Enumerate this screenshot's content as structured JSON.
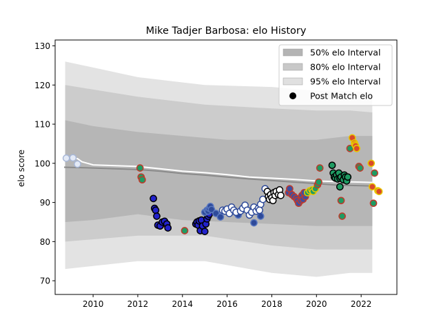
{
  "chart_data": {
    "type": "scatter",
    "title": "Mike Tadjer Barbosa: elo History",
    "xlabel": "",
    "ylabel": "elo score",
    "xlim": [
      2008.3,
      2023.6
    ],
    "ylim": [
      66.5,
      131.5
    ],
    "x_ticks": [
      2010,
      2012,
      2014,
      2016,
      2018,
      2020,
      2022
    ],
    "y_ticks": [
      70,
      80,
      90,
      100,
      110,
      120,
      130
    ],
    "grid": false,
    "legend_position": "top-right",
    "legend": [
      {
        "label": "50% elo Interval",
        "color": "#b4b4b4"
      },
      {
        "label": "80% elo Interval",
        "color": "#c8c8c8"
      },
      {
        "label": "95% elo Interval",
        "color": "#e0e0e0"
      },
      {
        "label": "Post Match elo",
        "color": "#000000"
      }
    ],
    "colors": {
      "band95": "#e3e3e3",
      "band80": "#cccccc",
      "band50": "#b6b6b6",
      "mean_line": "#ffffff",
      "fit_line": "#8a8a8a"
    },
    "band95": {
      "x": [
        2008.75,
        2012,
        2015,
        2018,
        2020,
        2021.5,
        2022.5
      ],
      "upper": [
        126,
        122,
        120,
        119.5,
        118.5,
        118.5,
        118
      ],
      "lower": [
        73,
        75,
        75,
        72,
        71,
        72,
        72
      ]
    },
    "band80": {
      "x": [
        2008.75,
        2012,
        2015,
        2018,
        2020,
        2021.5,
        2022.5
      ],
      "upper": [
        120,
        117,
        115,
        114,
        113.5,
        113.5,
        113
      ],
      "lower": [
        80,
        81.5,
        81.5,
        79,
        78,
        78,
        78
      ]
    },
    "band50": {
      "x": [
        2008.75,
        2010,
        2012,
        2014,
        2016,
        2018,
        2020,
        2021.5,
        2022.5
      ],
      "upper": [
        111,
        109.5,
        108,
        107,
        106,
        106,
        106,
        107,
        107
      ],
      "lower": [
        85,
        85.5,
        87,
        85.5,
        85,
        84.5,
        84,
        84,
        84
      ]
    },
    "mean_line": {
      "x": [
        2008.7,
        2009.0,
        2009.3,
        2009.5,
        2010,
        2011,
        2012,
        2013,
        2014,
        2015,
        2016,
        2017,
        2018,
        2019,
        2020,
        2021,
        2022,
        2022.5
      ],
      "y": [
        101.3,
        101.3,
        101.2,
        100.4,
        99.6,
        99.4,
        99.2,
        98.6,
        98.0,
        97.6,
        97.1,
        96.5,
        96.2,
        95.9,
        95.5,
        95.3,
        95.2,
        95.1
      ]
    },
    "fit_line": {
      "x": [
        2008.7,
        2010,
        2012,
        2013,
        2014,
        2015,
        2016,
        2017,
        2018,
        2019,
        2020,
        2021,
        2022,
        2022.5
      ],
      "y": [
        99.0,
        98.8,
        98.4,
        98.0,
        97.4,
        97.0,
        96.5,
        96.0,
        95.6,
        95.2,
        94.8,
        94.4,
        94.3,
        94.2
      ]
    },
    "series": [
      {
        "fill": "#e4eaf6",
        "stroke": "#a8b8d8",
        "points": [
          [
            2008.8,
            101.3
          ],
          [
            2009.1,
            101.4
          ],
          [
            2009.3,
            99.8
          ]
        ]
      },
      {
        "fill": "#1f9b63",
        "stroke": "#c0392b",
        "points": [
          [
            2012.1,
            98.8
          ],
          [
            2012.15,
            96.5
          ],
          [
            2012.2,
            95.8
          ],
          [
            2013.1,
            84.5
          ],
          [
            2014.1,
            82.8
          ]
        ]
      },
      {
        "fill": "#2222cc",
        "stroke": "#000000",
        "points": [
          [
            2012.7,
            91.0
          ],
          [
            2012.75,
            88.5
          ],
          [
            2012.8,
            88.0
          ],
          [
            2012.85,
            86.5
          ],
          [
            2012.9,
            84.2
          ],
          [
            2013.0,
            84.0
          ],
          [
            2013.1,
            85.0
          ],
          [
            2013.2,
            85.2
          ],
          [
            2013.3,
            84.5
          ],
          [
            2013.35,
            83.5
          ],
          [
            2014.6,
            84.5
          ],
          [
            2014.65,
            85.0
          ],
          [
            2014.7,
            84.2
          ],
          [
            2014.75,
            85.3
          ],
          [
            2014.8,
            82.8
          ],
          [
            2014.85,
            85.5
          ],
          [
            2014.9,
            84.0
          ],
          [
            2015.0,
            82.6
          ],
          [
            2015.05,
            84.5
          ],
          [
            2015.1,
            85.8
          ],
          [
            2015.15,
            86.5
          ],
          [
            2015.2,
            87.0
          ]
        ]
      },
      {
        "fill": "#2e4a9a",
        "stroke": "#5a78c0",
        "points": [
          [
            2015.0,
            87.5
          ],
          [
            2015.1,
            88.0
          ],
          [
            2015.15,
            87.8
          ],
          [
            2015.2,
            88.5
          ],
          [
            2015.25,
            89.0
          ],
          [
            2015.3,
            88.2
          ],
          [
            2015.5,
            87.2
          ],
          [
            2015.7,
            86.3
          ],
          [
            2016.5,
            86.8
          ],
          [
            2017.2,
            84.8
          ],
          [
            2017.5,
            86.5
          ]
        ]
      },
      {
        "fill": "#ffffff",
        "stroke": "#2e4a9a",
        "points": [
          [
            2015.8,
            88.0
          ],
          [
            2015.9,
            87.8
          ],
          [
            2016.0,
            88.3
          ],
          [
            2016.1,
            87.2
          ],
          [
            2016.2,
            88.8
          ],
          [
            2016.3,
            88.0
          ],
          [
            2016.4,
            87.5
          ],
          [
            2016.6,
            87.8
          ],
          [
            2016.7,
            88.5
          ],
          [
            2016.8,
            89.3
          ],
          [
            2016.9,
            88.0
          ],
          [
            2017.0,
            86.8
          ],
          [
            2017.1,
            87.5
          ],
          [
            2017.2,
            88.8
          ],
          [
            2017.3,
            87.8
          ],
          [
            2017.4,
            88.5
          ],
          [
            2017.5,
            89.5
          ],
          [
            2017.6,
            90.8
          ],
          [
            2017.7,
            93.5
          ],
          [
            2017.45,
            88.0
          ]
        ]
      },
      {
        "fill": "#ffffff",
        "stroke": "#000000",
        "points": [
          [
            2017.8,
            92.8
          ],
          [
            2017.85,
            91.5
          ],
          [
            2017.9,
            90.8
          ],
          [
            2017.95,
            92.0
          ],
          [
            2018.0,
            91.2
          ],
          [
            2018.05,
            90.5
          ],
          [
            2018.1,
            92.5
          ],
          [
            2018.15,
            91.8
          ],
          [
            2018.2,
            92.8
          ],
          [
            2018.3,
            92.0
          ],
          [
            2018.35,
            93.2
          ],
          [
            2018.4,
            91.8
          ]
        ]
      },
      {
        "fill": "#3d4fa0",
        "stroke": "#c0392b",
        "points": [
          [
            2018.75,
            92.5
          ],
          [
            2018.8,
            93.5
          ],
          [
            2018.9,
            92.0
          ],
          [
            2019.0,
            91.5
          ],
          [
            2019.1,
            91.0
          ],
          [
            2019.15,
            90.5
          ],
          [
            2019.2,
            89.8
          ],
          [
            2019.3,
            90.5
          ],
          [
            2019.35,
            91.8
          ],
          [
            2019.4,
            90.8
          ],
          [
            2019.5,
            91.5
          ],
          [
            2019.45,
            92.5
          ]
        ]
      },
      {
        "fill": "#1f9b63",
        "stroke": "#e8c800",
        "points": [
          [
            2019.6,
            92.5
          ],
          [
            2019.7,
            93.0
          ],
          [
            2019.8,
            93.2
          ],
          [
            2019.85,
            92.8
          ],
          [
            2019.95,
            93.5
          ]
        ]
      },
      {
        "fill": "#1f9b63",
        "stroke": "#c0392b",
        "points": [
          [
            2020.05,
            94.5
          ],
          [
            2020.1,
            95.2
          ],
          [
            2020.15,
            98.8
          ],
          [
            2021.1,
            90.5
          ],
          [
            2021.15,
            86.5
          ],
          [
            2021.5,
            103.8
          ],
          [
            2021.9,
            99.2
          ],
          [
            2021.95,
            98.8
          ],
          [
            2022.6,
            97.5
          ],
          [
            2022.55,
            89.8
          ]
        ]
      },
      {
        "fill": "#1f9b63",
        "stroke": "#000000",
        "points": [
          [
            2020.7,
            99.5
          ],
          [
            2020.75,
            97.5
          ],
          [
            2020.8,
            96.5
          ],
          [
            2020.85,
            96.2
          ],
          [
            2020.9,
            97.0
          ],
          [
            2020.95,
            96.0
          ],
          [
            2021.0,
            97.5
          ],
          [
            2021.05,
            96.2
          ],
          [
            2021.1,
            96.5
          ],
          [
            2021.2,
            95.8
          ],
          [
            2021.25,
            97.0
          ],
          [
            2021.3,
            96.5
          ],
          [
            2021.35,
            95.5
          ],
          [
            2021.4,
            96.5
          ],
          [
            2021.05,
            94.0
          ]
        ]
      },
      {
        "fill": "#d94a2a",
        "stroke": "#e8c800",
        "points": [
          [
            2021.6,
            106.5
          ],
          [
            2021.7,
            105.2
          ],
          [
            2021.72,
            104.8
          ],
          [
            2021.75,
            104.5
          ],
          [
            2021.8,
            103.8
          ],
          [
            2022.45,
            100.0
          ],
          [
            2022.5,
            94.0
          ],
          [
            2022.75,
            93.0
          ],
          [
            2022.8,
            92.8
          ]
        ]
      }
    ]
  }
}
